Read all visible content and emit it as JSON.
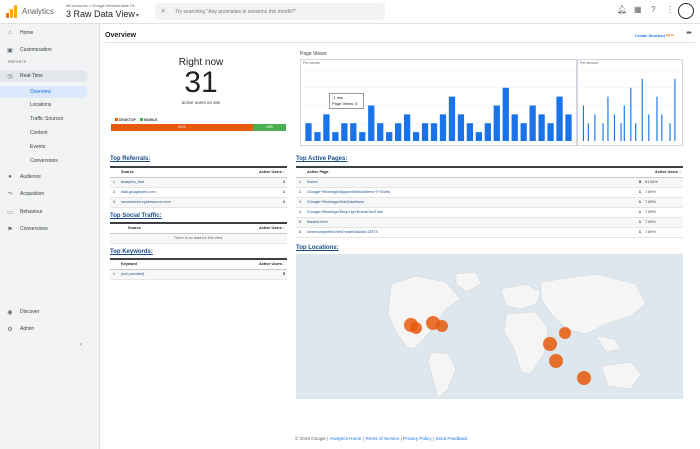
{
  "app": {
    "brand": "Analytics",
    "breadcrumb": "All accounts > Google Merchandise St...",
    "view": "3 Raw Data View",
    "search_placeholder": "Try searching \"Any anomalies in sessions this month?\""
  },
  "sidebar": {
    "items": [
      {
        "label": "Home",
        "icon": "home-icon"
      },
      {
        "label": "Customisation",
        "icon": "dashboard-icon"
      }
    ],
    "reports_label": "REPORTS",
    "realtime": {
      "label": "Real-Time",
      "children": [
        "Overview",
        "Locations",
        "Traffic Sources",
        "Content",
        "Events",
        "Conversions"
      ]
    },
    "groups": [
      {
        "label": "Audience",
        "icon": "person-icon"
      },
      {
        "label": "Acquisition",
        "icon": "acquisition-icon"
      },
      {
        "label": "Behaviour",
        "icon": "behaviour-icon"
      },
      {
        "label": "Conversions",
        "icon": "flag-icon"
      }
    ],
    "bottom": [
      {
        "label": "Discover",
        "icon": "lightbulb-icon"
      },
      {
        "label": "Admin",
        "icon": "gear-icon"
      }
    ]
  },
  "main": {
    "title": "Overview",
    "create_shortcut": "Create Shortcut",
    "beta": "BETA",
    "right_now": {
      "label": "Right now",
      "count": "31",
      "sub": "active users on site",
      "desktop_label": "DESKTOP",
      "mobile_label": "MOBILE",
      "desktop_pct": "81%",
      "mobile_pct": "19%",
      "desktop_share": 0.81,
      "colors": {
        "desktop": "#e8590c",
        "mobile": "#4caf50"
      }
    },
    "page_views": {
      "title": "Page Views",
      "per_minute_label": "Per minute",
      "per_second_label": "Per second",
      "tooltip_line1": "-1 min",
      "tooltip_line2": "Page Views: 6",
      "per_minute_values": [
        2,
        1,
        3,
        1,
        2,
        2,
        1,
        4,
        2,
        1,
        2,
        3,
        1,
        2,
        2,
        3,
        5,
        3,
        2,
        1,
        2,
        4,
        6,
        3,
        2,
        4,
        3,
        2,
        5,
        3
      ],
      "per_second_values": [
        0,
        4,
        0,
        0,
        2,
        0,
        0,
        0,
        3,
        0,
        0,
        0,
        0,
        2,
        0,
        0,
        5,
        0,
        0,
        0,
        3,
        0,
        0,
        0,
        2,
        0,
        4,
        0,
        0,
        0,
        6,
        0,
        0,
        2,
        0,
        0,
        0,
        7,
        0,
        0,
        0,
        3,
        0,
        0,
        0,
        0,
        5,
        0,
        0,
        3,
        0,
        0,
        0,
        0,
        2,
        0,
        0,
        7,
        0,
        0
      ],
      "bar_color": "#1a73e8"
    },
    "referrals": {
      "title": "Top Referrals:",
      "headers": [
        "Source",
        "Active Users"
      ],
      "rows": [
        {
          "idx": "1.",
          "source": "analytics_test",
          "users": "1"
        },
        {
          "idx": "2.",
          "source": "mail.googleplex.com",
          "users": "1"
        },
        {
          "idx": "3.",
          "source": "securestore.cybersource.com",
          "users": "1"
        }
      ]
    },
    "social": {
      "title": "Top Social Traffic:",
      "headers": [
        "Source",
        "Active Users"
      ],
      "empty": "There is no data for this view."
    },
    "keywords": {
      "title": "Top Keywords:",
      "headers": [
        "Keyword",
        "Active Users"
      ],
      "rows": [
        {
          "idx": "1.",
          "keyword": "(not provided)",
          "users": "5"
        }
      ]
    },
    "active_pages": {
      "title": "Top Active Pages:",
      "headers": [
        "Active Page",
        "Active Users"
      ],
      "rows": [
        {
          "idx": "1.",
          "page": "/home",
          "users": "8",
          "pct": "61.54%"
        },
        {
          "idx": "2.",
          "page": "/Google+Redesign/Apparel/Mens/Mens+T+Shirts",
          "users": "1",
          "pct": "7.69%"
        },
        {
          "idx": "3.",
          "page": "/Google+Redesign/Kids/Nasthuse",
          "users": "1",
          "pct": "7.69%"
        },
        {
          "idx": "4.",
          "page": "/Google+Redesign/Shop+by+Brand/YouTube",
          "users": "1",
          "pct": "7.69%"
        },
        {
          "idx": "5.",
          "page": "/basket.html",
          "users": "1",
          "pct": "7.69%"
        },
        {
          "idx": "6.",
          "page": "/ordercompleted.html?orderDataId=13573",
          "users": "1",
          "pct": "7.69%"
        }
      ]
    },
    "locations": {
      "title": "Top Locations:",
      "bubble_color": "#e8590c",
      "land_color": "#f5f5f5",
      "water_color": "#dfe7ee"
    },
    "footer": {
      "copyright": "© 2019 Google |",
      "links": [
        "Analytics Home",
        "Terms of Service",
        "Privacy Policy",
        "Send Feedback"
      ]
    }
  }
}
